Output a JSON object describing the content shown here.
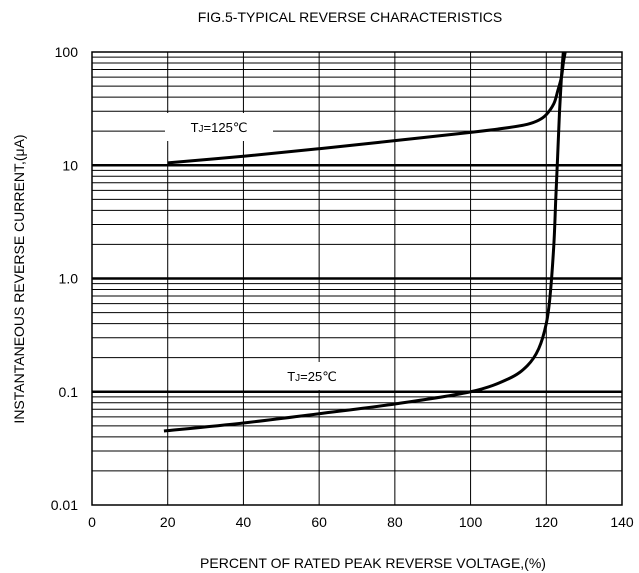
{
  "chart_data": {
    "type": "line",
    "title": "FIG.5-TYPICAL REVERSE CHARACTERISTICS",
    "xlabel": "PERCENT OF RATED PEAK REVERSE VOLTAGE,(%)",
    "ylabel": "INSTANTANEOUS REVERSE CURRENT,(μA)",
    "x_scale": "linear",
    "y_scale": "log",
    "xlim": [
      0,
      140
    ],
    "ylim": [
      0.01,
      100
    ],
    "x_ticks": [
      "0",
      "20",
      "40",
      "60",
      "80",
      "100",
      "120",
      "140"
    ],
    "y_ticks": [
      "0.01",
      "0.1",
      "1.0",
      "10",
      "100"
    ],
    "grid": true,
    "series": [
      {
        "name": "TJ=125℃",
        "label_prefix": "T",
        "label_sub": "J",
        "label_suffix": "=125℃",
        "x": [
          20,
          40,
          60,
          80,
          100,
          110,
          115,
          118,
          120,
          122,
          123,
          124,
          124.5,
          125
        ],
        "y": [
          10.5,
          12,
          14,
          16.5,
          19.5,
          21.5,
          23,
          25,
          28,
          35,
          45,
          60,
          80,
          100
        ]
      },
      {
        "name": "TJ=25℃",
        "label_prefix": "T",
        "label_sub": "J",
        "label_suffix": "=25℃",
        "x": [
          19,
          40,
          60,
          80,
          100,
          110,
          115,
          118,
          120,
          121,
          122,
          122.5,
          123,
          123.5,
          124,
          124.5
        ],
        "y": [
          0.045,
          0.053,
          0.064,
          0.078,
          0.1,
          0.13,
          0.17,
          0.24,
          0.4,
          0.7,
          2,
          5,
          12,
          30,
          60,
          100
        ]
      }
    ]
  }
}
